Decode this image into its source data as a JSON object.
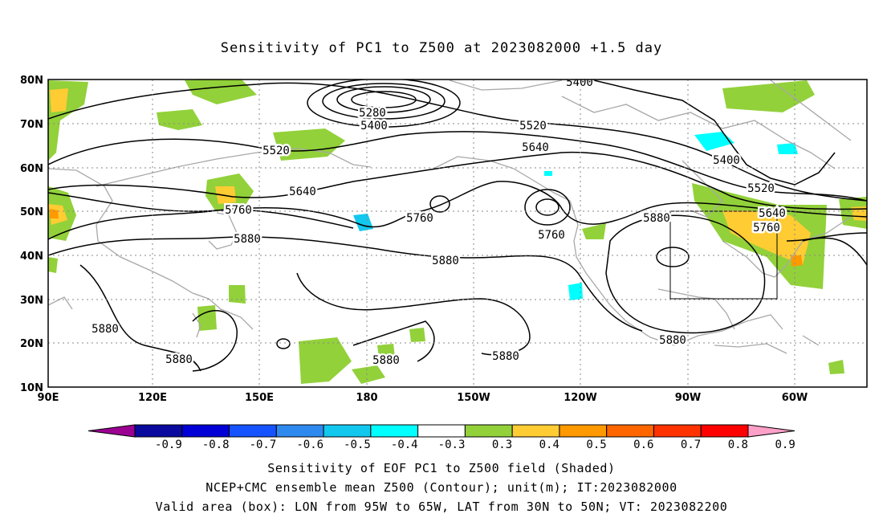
{
  "title": "Sensitivity of PC1 to Z500 at 2023082000 +1.5 day",
  "axes": {
    "lat_labels": [
      "80N",
      "70N",
      "60N",
      "50N",
      "40N",
      "30N",
      "20N",
      "10N"
    ],
    "lon_labels": [
      "90E",
      "120E",
      "150E",
      "180",
      "150W",
      "120W",
      "90W",
      "60W"
    ]
  },
  "contour_labels": [
    {
      "text": "5400"
    },
    {
      "text": "5280"
    },
    {
      "text": "5400"
    },
    {
      "text": "5520"
    },
    {
      "text": "5520"
    },
    {
      "text": "5640"
    },
    {
      "text": "5400"
    },
    {
      "text": "5640"
    },
    {
      "text": "5520"
    },
    {
      "text": "5760"
    },
    {
      "text": "5760"
    },
    {
      "text": "5880"
    },
    {
      "text": "5640"
    },
    {
      "text": "5760"
    },
    {
      "text": "5760"
    },
    {
      "text": "5880"
    },
    {
      "text": "5880"
    },
    {
      "text": "5880"
    },
    {
      "text": "5880"
    },
    {
      "text": "5880"
    },
    {
      "text": "5880"
    },
    {
      "text": "5880"
    }
  ],
  "colorbar": {
    "colors": [
      "#9b0092",
      "#0a0a9e",
      "#0000d6",
      "#1553ff",
      "#2f8af0",
      "#12c8ef",
      "#00ffff",
      "#ffffff",
      "#92d13a",
      "#ffcc33",
      "#ff9900",
      "#ff6600",
      "#ff3300",
      "#ff0000",
      "#ffa0c8"
    ],
    "labels": [
      "-0.9",
      "-0.8",
      "-0.7",
      "-0.6",
      "-0.5",
      "-0.4",
      "-0.3",
      "0.3",
      "0.4",
      "0.5",
      "0.6",
      "0.7",
      "0.8",
      "0.9"
    ]
  },
  "captions": {
    "line1": "Sensitivity of EOF PC1 to Z500 field (Shaded)",
    "line2": "NCEP+CMC ensemble mean Z500 (Contour); unit(m); IT:2023082000",
    "line3": "Valid area (box): LON from 95W to 65W, LAT from 30N to 50N; VT: 2023082200"
  },
  "valid_area": {
    "lon_min": -95,
    "lon_max": -65,
    "lat_min": 30,
    "lat_max": 50
  }
}
